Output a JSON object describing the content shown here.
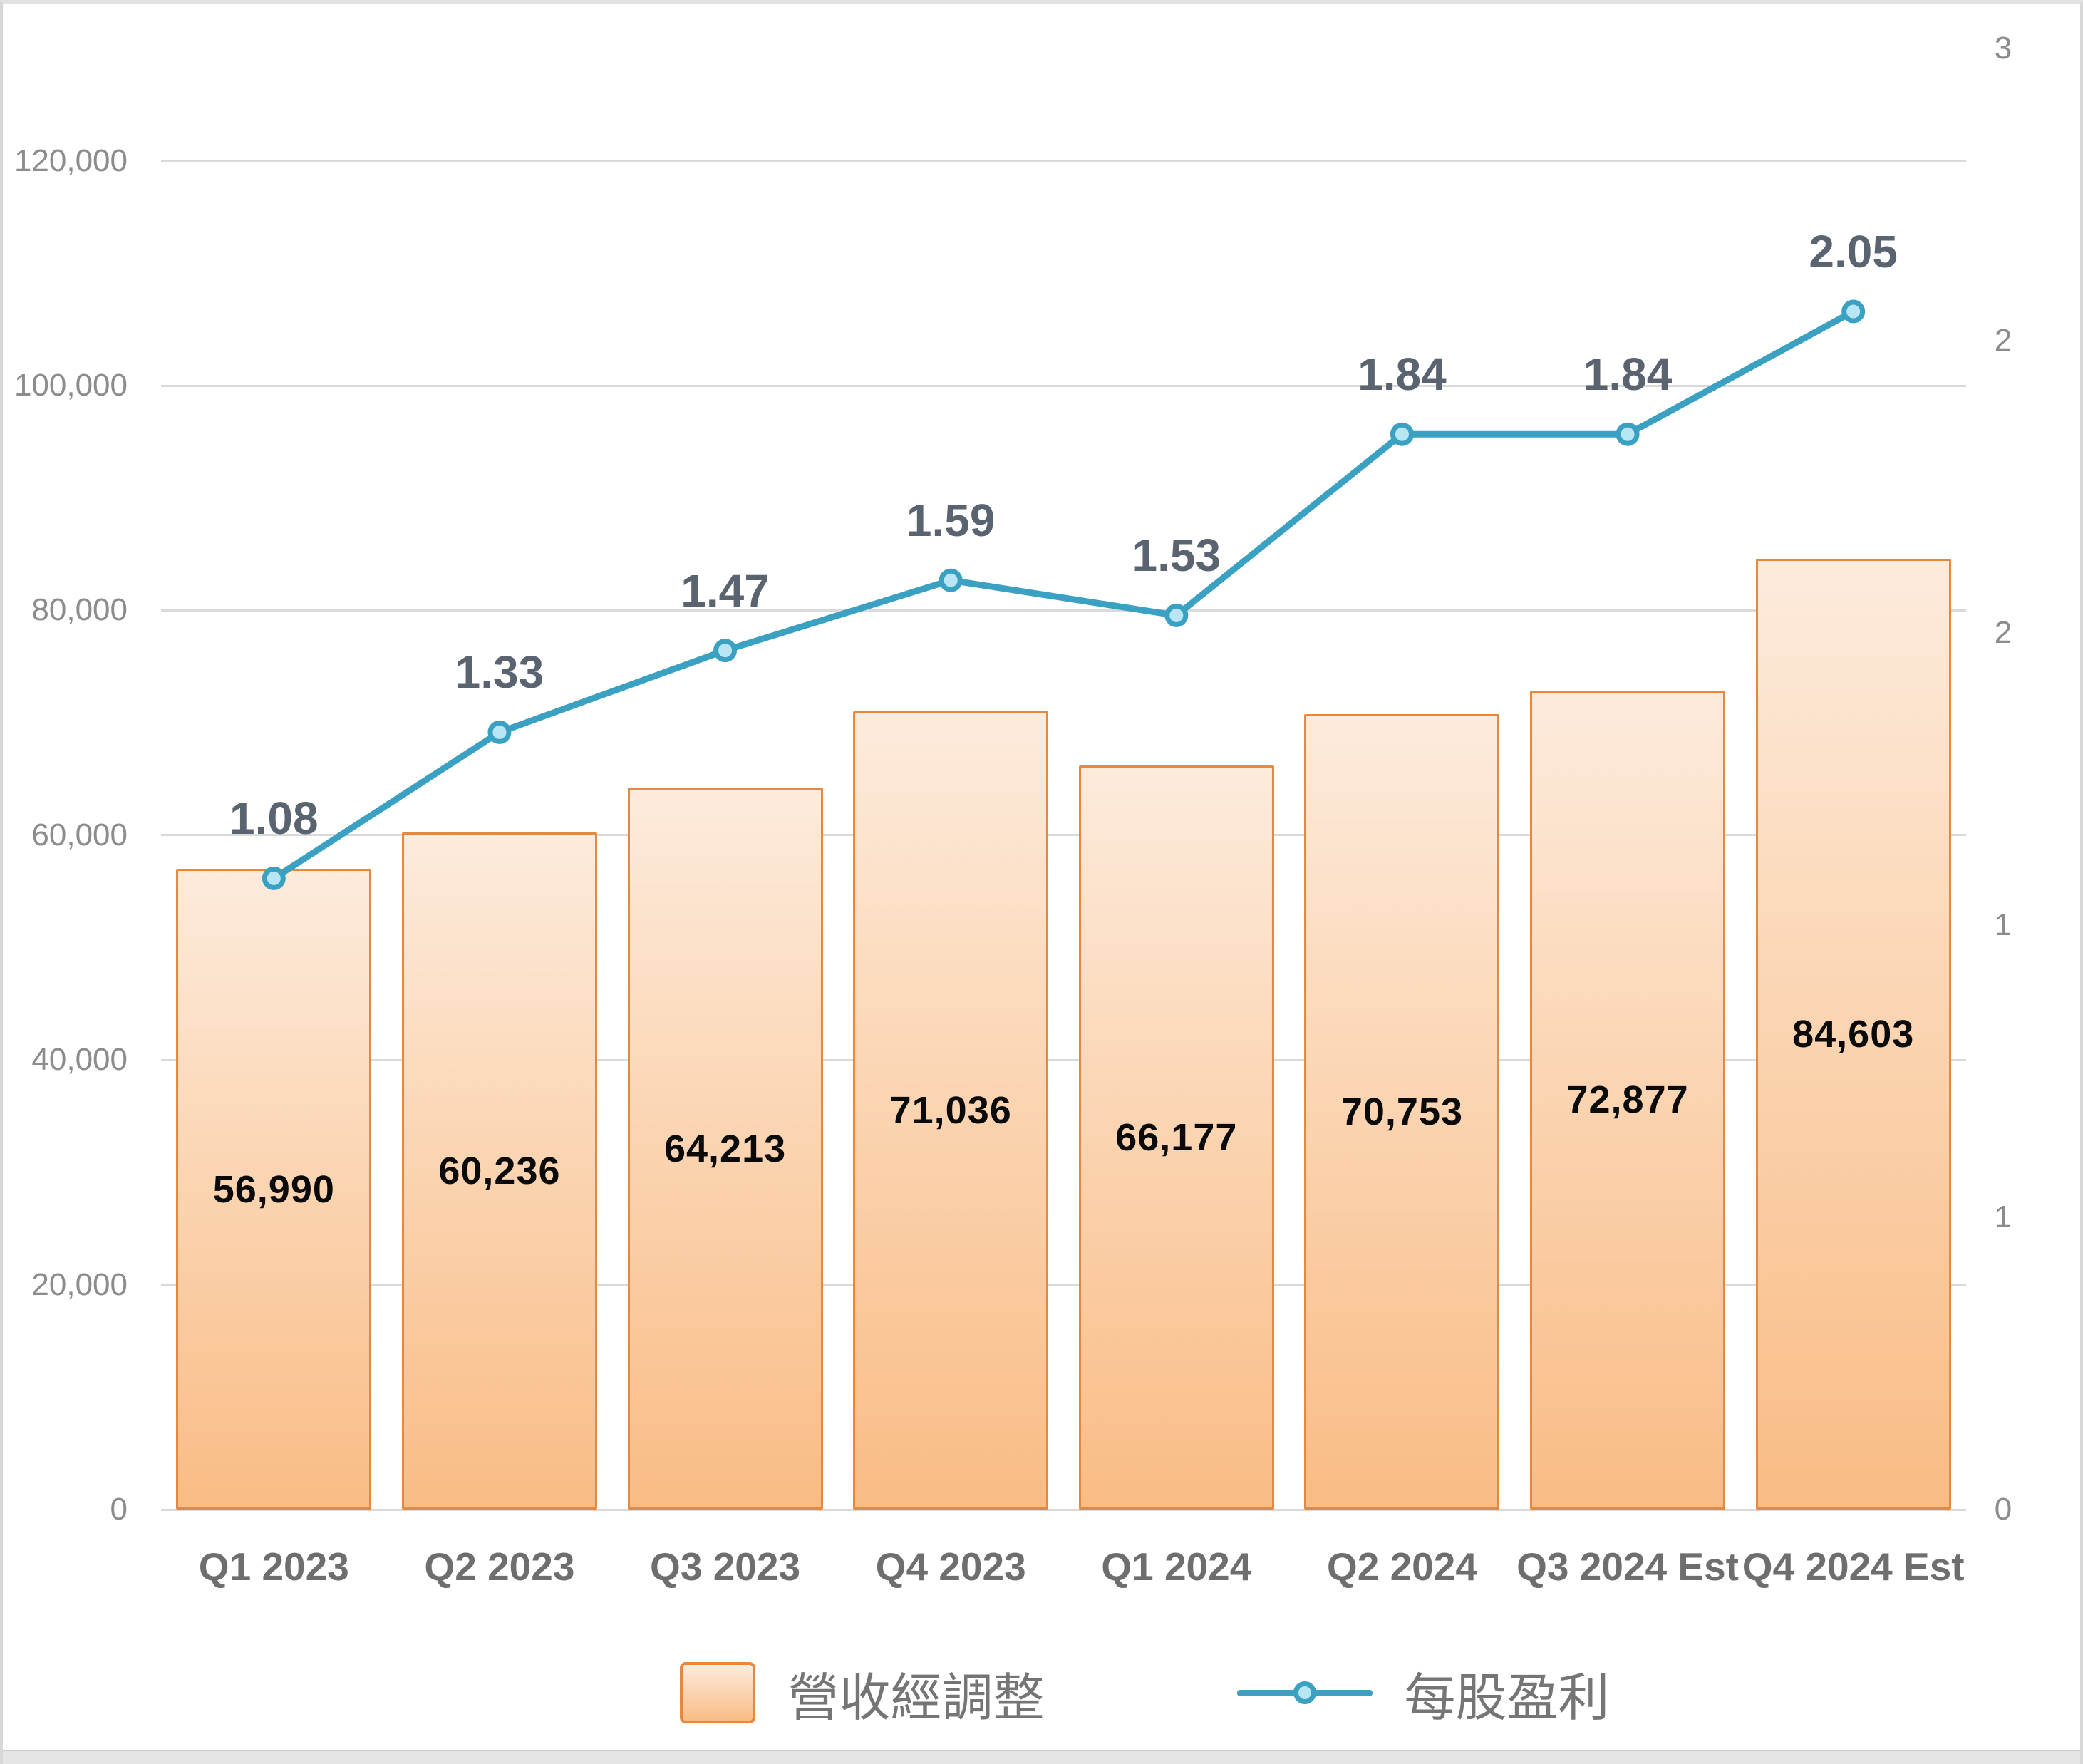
{
  "chart_data": {
    "type": "combo_bar_line",
    "categories": [
      "Q1 2023",
      "Q2 2023",
      "Q3 2023",
      "Q4 2023",
      "Q1 2024",
      "Q2 2024",
      "Q3 2024 Est",
      "Q4 2024 Est"
    ],
    "series": [
      {
        "name": "營收經調整",
        "type": "bar",
        "axis": "left",
        "values": [
          56990,
          60236,
          64213,
          71036,
          66177,
          70753,
          72877,
          84603
        ],
        "labels": [
          "56,990",
          "60,236",
          "64,213",
          "71,036",
          "66,177",
          "70,753",
          "72,877",
          "84,603"
        ]
      },
      {
        "name": "每股盈利",
        "type": "line",
        "axis": "right",
        "values": [
          1.08,
          1.33,
          1.47,
          1.59,
          1.53,
          1.84,
          1.84,
          2.05
        ],
        "labels": [
          "1.08",
          "1.33",
          "1.47",
          "1.59",
          "1.53",
          "1.84",
          "1.84",
          "2.05"
        ]
      }
    ],
    "left_axis": {
      "min": 0,
      "max": 130000,
      "major": 20000,
      "tick_labels": [
        "0",
        "20,000",
        "40,000",
        "60,000",
        "80,000",
        "100,000",
        "120,000"
      ]
    },
    "right_axis": {
      "min": 0,
      "max": 2.5,
      "major": 0.5,
      "tick_labels": [
        "0",
        "1",
        "1",
        "2",
        "2",
        "3"
      ]
    },
    "grid": true,
    "legend_position": "bottom",
    "colors": {
      "bar_fill_top": "#FDEBDC",
      "bar_fill_bottom": "#F9BC85",
      "bar_border": "#E8883C",
      "line": "#3BA1C2",
      "marker_fill": "#B9E6F4",
      "grid": "#DADADA",
      "axis_text": "#8C8C8C",
      "category_text": "#6E6E6E",
      "eps_label_text": "#5A6470",
      "bar_label_text": "#0A0A0A",
      "legend_text": "#757575"
    }
  },
  "legend": {
    "revenue_label": "營收經調整",
    "eps_label": "每股盈利"
  }
}
